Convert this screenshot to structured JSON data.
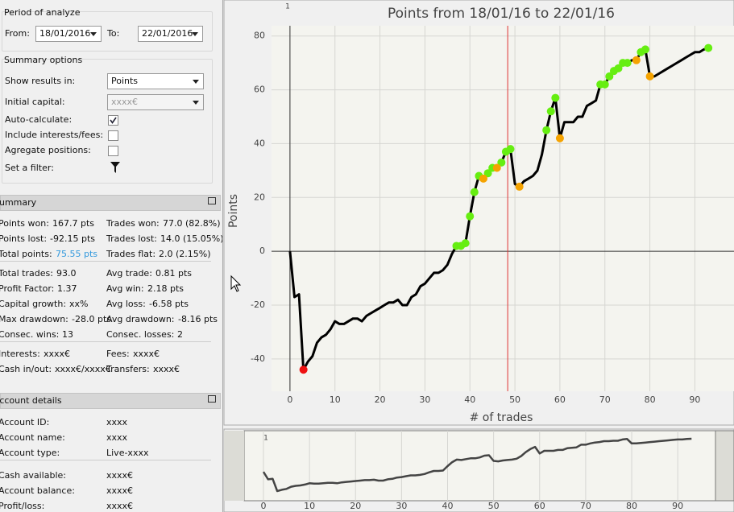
{
  "period": {
    "title": "Period of analyze",
    "from_label": "From:",
    "from": "18/01/2016",
    "to_label": "To:",
    "to": "22/01/2016"
  },
  "options": {
    "title": "Summary options",
    "show_label": "Show results in:",
    "show_value": "Points",
    "capital_label": "Initial capital:",
    "capital_placeholder": "xxxx€",
    "auto_label": "Auto-calculate:",
    "fees_label": "Include interests/fees:",
    "aggregate_label": "Agregate positions:",
    "filter_label": "Set a filter:"
  },
  "summary": {
    "title": "Summary",
    "groups": [
      [
        [
          {
            "label": "Points won:",
            "value": "167.7 pts"
          },
          {
            "label": "Trades won:",
            "value": "77.0 (82.8%)"
          }
        ],
        [
          {
            "label": "Points lost:",
            "value": "-92.15 pts"
          },
          {
            "label": "Trades lost:",
            "value": "14.0 (15.05%)"
          }
        ],
        [
          {
            "label": "Total points:",
            "value": "75.55 pts"
          },
          {
            "label": "Trades flat:",
            "value": "2.0 (2.15%)"
          }
        ]
      ],
      [
        [
          {
            "label": "Total trades:",
            "value": "93.0"
          },
          {
            "label": "Avg trade:",
            "value": "0.81 pts"
          }
        ],
        [
          {
            "label": "Profit Factor:",
            "value": "1.37"
          },
          {
            "label": "Avg win:",
            "value": "2.18 pts"
          }
        ],
        [
          {
            "label": "Capital growth:",
            "value": "xx%"
          },
          {
            "label": "Avg loss:",
            "value": "-6.58 pts"
          }
        ],
        [
          {
            "label": "Max drawdown:",
            "value": "-28.0 pts"
          },
          {
            "label": "Avg drawdown:",
            "value": "-8.16 pts"
          }
        ],
        [
          {
            "label": "Consec. wins:",
            "value": "13"
          },
          {
            "label": "Consec. losses:",
            "value": "2"
          }
        ]
      ],
      [
        [
          {
            "label": "Interests:",
            "value": "xxxx€"
          },
          {
            "label": "Fees:",
            "value": "xxxx€"
          }
        ],
        [
          {
            "label": "Cash in/out:",
            "value": "xxxx€/xxxx€"
          },
          {
            "label": "Transfers:",
            "value": "xxxx€"
          }
        ]
      ]
    ]
  },
  "account": {
    "title": "Account details",
    "groups": [
      [
        {
          "label": "Account ID:",
          "value": "xxxx"
        },
        {
          "label": "Account name:",
          "value": "xxxx"
        },
        {
          "label": "Account type:",
          "value": "Live-xxxx"
        }
      ],
      [
        {
          "label": "Cash available:",
          "value": "xxxx€"
        },
        {
          "label": "Account balance:",
          "value": "xxxx€"
        },
        {
          "label": "Profit/loss:",
          "value": "xxxx€"
        }
      ]
    ]
  },
  "chart_data": {
    "type": "line",
    "title": "Points from 18/01/16 to 22/01/16",
    "x_label": "# of trades",
    "y_label": "Points",
    "panel_label": "1",
    "color": "#000000",
    "grid": true,
    "x": [
      0,
      1,
      2,
      3,
      4,
      5,
      6,
      7,
      8,
      9,
      10,
      11,
      12,
      13,
      14,
      15,
      16,
      17,
      18,
      19,
      20,
      21,
      22,
      23,
      24,
      25,
      26,
      27,
      28,
      29,
      30,
      31,
      32,
      33,
      34,
      35,
      36,
      37,
      38,
      39,
      40,
      41,
      42,
      43,
      44,
      45,
      46,
      47,
      48,
      49,
      50,
      51,
      52,
      53,
      54,
      55,
      56,
      57,
      58,
      59,
      60,
      61,
      62,
      63,
      64,
      65,
      66,
      67,
      68,
      69,
      70,
      71,
      72,
      73,
      74,
      75,
      76,
      77,
      78,
      79,
      80,
      81,
      82,
      83,
      84,
      85,
      86,
      87,
      88,
      89,
      90,
      91,
      92,
      93
    ],
    "values": [
      0,
      -17,
      -16,
      -44,
      -41,
      -39,
      -34,
      -32,
      -31,
      -29,
      -26,
      -27,
      -27,
      -26,
      -25,
      -25,
      -26,
      -24,
      -23,
      -22,
      -21,
      -20,
      -19,
      -19,
      -18,
      -20,
      -20,
      -17,
      -16,
      -13,
      -12,
      -10,
      -8,
      -8,
      -7,
      -5,
      -1,
      2,
      2,
      3,
      13,
      22,
      28,
      27,
      29,
      31,
      31,
      33,
      37,
      38,
      25,
      24,
      26,
      27,
      28,
      30,
      36,
      45,
      52,
      57,
      42,
      48,
      48,
      48,
      50,
      50,
      54,
      55,
      56,
      62,
      62,
      65,
      67,
      68,
      70,
      70,
      71,
      71,
      74,
      75,
      65,
      65,
      66,
      67,
      68,
      69,
      70,
      71,
      72,
      73,
      74,
      74,
      75,
      75.55
    ],
    "markers": [
      {
        "color": "#66ee11",
        "x": [
          37,
          38,
          39,
          40,
          41,
          42,
          44,
          45,
          47,
          48,
          49,
          57,
          58,
          59,
          69,
          70,
          71,
          72,
          73,
          74,
          75,
          78,
          79,
          93
        ],
        "values": [
          2,
          2,
          3,
          13,
          22,
          28,
          29,
          31,
          33,
          37,
          38,
          45,
          52,
          57,
          62,
          62,
          65,
          67,
          68,
          70,
          70,
          74,
          75,
          75.55
        ]
      },
      {
        "color": "#f5a300",
        "x": [
          43,
          46,
          51,
          60,
          77,
          80
        ],
        "values": [
          27,
          31,
          24,
          42,
          71,
          65
        ]
      },
      {
        "color": "#ee1111",
        "x": [
          3
        ],
        "values": [
          -44
        ]
      }
    ],
    "vline": {
      "x": 48.4,
      "color": "#dd3333"
    },
    "xlim": [
      -4.1,
      98.7
    ],
    "ylim": [
      -52,
      83.8
    ],
    "xticks": [
      0,
      10,
      20,
      30,
      40,
      50,
      60,
      70,
      80,
      90
    ],
    "yticks": [
      -40,
      -20,
      0,
      20,
      40,
      60,
      80
    ],
    "overview": {
      "xlim": [
        -4.2,
        98.2
      ],
      "ylim": [
        -66,
        94
      ],
      "xticks": [
        0,
        10,
        20,
        30,
        40,
        50,
        60,
        70,
        80,
        90
      ],
      "color": "#444444"
    }
  }
}
